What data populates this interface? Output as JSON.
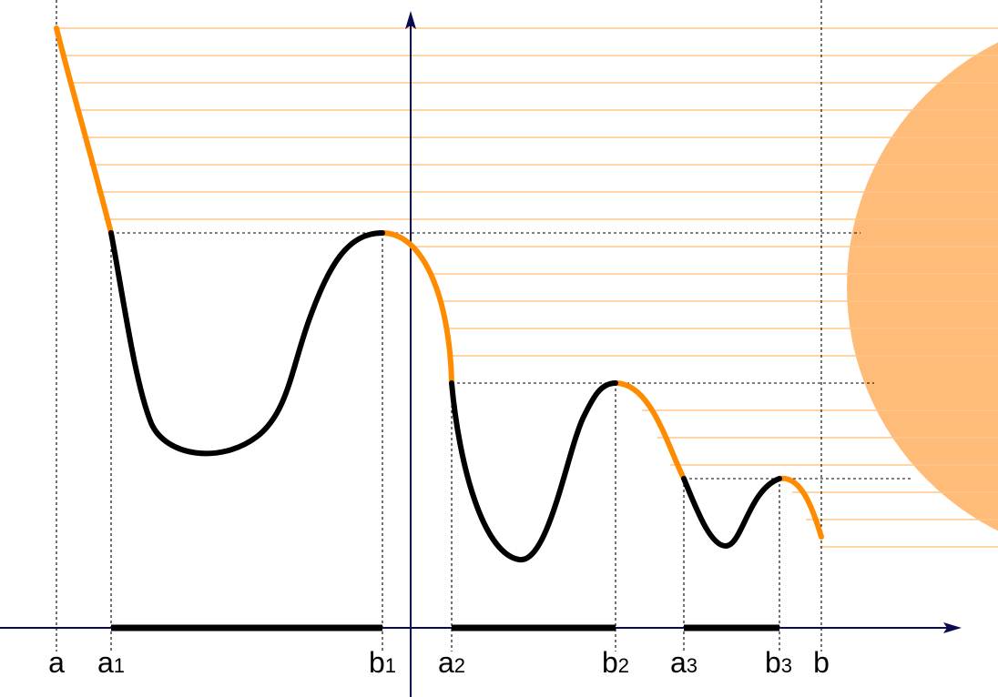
{
  "labels": {
    "a": "a",
    "a1": "a",
    "a1_sub": "1",
    "b1": "b",
    "b1_sub": "1",
    "a2": "a",
    "a2_sub": "2",
    "b2": "b",
    "b2_sub": "2",
    "a3": "a",
    "a3_sub": "3",
    "b3": "b",
    "b3_sub": "3",
    "b": "b"
  },
  "colors": {
    "curve_rising": "#ff8c00",
    "curve_main": "#000000",
    "hatch_lines": "#ffc68a",
    "sun": "#ffbb78",
    "axes": "#0a0a50",
    "dotted": "#000000"
  }
}
